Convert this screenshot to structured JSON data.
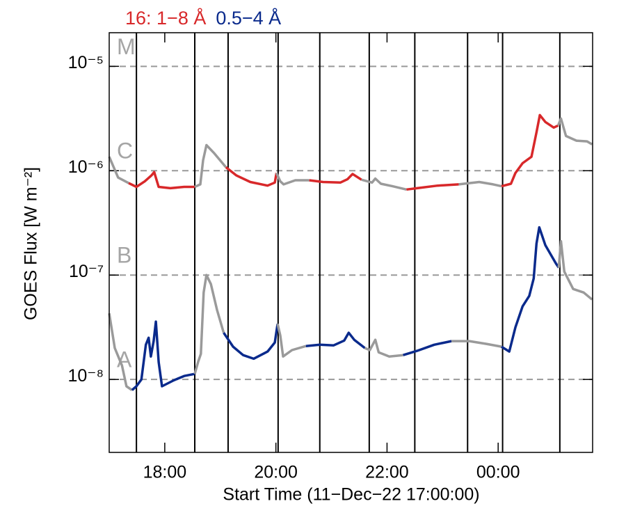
{
  "chart_data": {
    "type": "line",
    "xlabel": "Start Time (11−Dec−22 17:00:00)",
    "ylabel": "GOES Flux [W m⁻²]",
    "log_y": true,
    "grid": true,
    "xlim": [
      0,
      8.7
    ],
    "ylim": [
      2e-09,
      2.1e-05
    ],
    "xticks": [
      {
        "value": 1,
        "label": "18:00"
      },
      {
        "value": 3,
        "label": "20:00"
      },
      {
        "value": 5,
        "label": "22:00"
      },
      {
        "value": 7,
        "label": "00:00"
      }
    ],
    "yticks": [
      {
        "value": 1e-08,
        "label": "10⁻⁸"
      },
      {
        "value": 1e-07,
        "label": "10⁻⁷"
      },
      {
        "value": 1e-06,
        "label": "10⁻⁶"
      },
      {
        "value": 1e-05,
        "label": "10⁻⁵"
      }
    ],
    "flare_classes": [
      {
        "label": "A",
        "value": 1e-08
      },
      {
        "label": "B",
        "value": 1e-07
      },
      {
        "label": "C",
        "value": 1e-06
      },
      {
        "label": "M",
        "value": 1e-05
      }
    ],
    "intervals": [
      [
        0.49,
        1.54
      ],
      [
        2.14,
        3.04
      ],
      [
        3.79,
        4.68
      ],
      [
        5.5,
        6.45
      ],
      [
        7.08,
        8.11
      ]
    ],
    "outside_color": "#9a9a9a",
    "series": [
      {
        "name": "16: 1−8 Å",
        "color": "#d8282a",
        "x": [
          0,
          0.16,
          0.35,
          0.49,
          0.64,
          0.76,
          0.81,
          0.89,
          1.1,
          1.35,
          1.54,
          1.64,
          1.69,
          1.75,
          1.89,
          2.1,
          2.29,
          2.54,
          2.85,
          2.98,
          3.01,
          3.08,
          3.14,
          3.35,
          3.6,
          3.85,
          4.16,
          4.29,
          4.38,
          4.54,
          4.73,
          4.79,
          4.89,
          5.1,
          5.35,
          5.54,
          5.91,
          6.29,
          6.66,
          6.91,
          7.06,
          7.23,
          7.31,
          7.44,
          7.6,
          7.69,
          7.75,
          7.85,
          8.0,
          8.08,
          8.13,
          8.22,
          8.41,
          8.6,
          8.69
        ],
        "values": [
          1.36e-06,
          8.6e-07,
          7.6e-07,
          7e-07,
          7.9e-07,
          9e-07,
          9.7e-07,
          7e-07,
          6.8e-07,
          7e-07,
          7e-07,
          7.4e-07,
          1.26e-06,
          1.76e-06,
          1.47e-06,
          1.08e-06,
          9e-07,
          7.8e-07,
          7.2e-07,
          7.7e-07,
          9.5e-07,
          7.9e-07,
          7.4e-07,
          8.1e-07,
          8.1e-07,
          7.8e-07,
          7.7e-07,
          8.3e-07,
          9.3e-07,
          8.2e-07,
          7.7e-07,
          8.4e-07,
          7.5e-07,
          7.1e-07,
          6.6e-07,
          6.8e-07,
          7.2e-07,
          7.4e-07,
          7.8e-07,
          7.4e-07,
          7.1e-07,
          7.5e-07,
          9.5e-07,
          1.18e-06,
          1.36e-06,
          2.33e-06,
          3.41e-06,
          2.93e-06,
          2.59e-06,
          2.71e-06,
          3.16e-06,
          2.15e-06,
          1.94e-06,
          1.91e-06,
          1.79e-06
        ]
      },
      {
        "name": "0.5−4 Å",
        "color": "#0a2a8c",
        "x": [
          0,
          0.1,
          0.23,
          0.31,
          0.41,
          0.49,
          0.58,
          0.66,
          0.71,
          0.75,
          0.8,
          0.84,
          0.89,
          0.95,
          1.16,
          1.35,
          1.54,
          1.6,
          1.65,
          1.7,
          1.75,
          1.83,
          1.94,
          2.06,
          2.23,
          2.41,
          2.6,
          2.85,
          2.98,
          3.03,
          3.08,
          3.13,
          3.29,
          3.54,
          3.79,
          4.04,
          4.23,
          4.31,
          4.41,
          4.6,
          4.69,
          4.79,
          4.85,
          5.04,
          5.29,
          5.54,
          5.85,
          6.16,
          6.48,
          6.79,
          7.06,
          7.2,
          7.31,
          7.44,
          7.56,
          7.64,
          7.69,
          7.74,
          7.85,
          8.04,
          8.09,
          8.13,
          8.19,
          8.35,
          8.54,
          8.69
        ],
        "values": [
          4.3e-08,
          2e-08,
          1.36e-08,
          8.6e-09,
          7.9e-09,
          8.6e-09,
          1e-08,
          2.15e-08,
          2.51e-08,
          1.66e-08,
          2.33e-08,
          3.58e-08,
          1.47e-08,
          8.6e-09,
          9.8e-09,
          1.08e-08,
          1.13e-08,
          1.47e-08,
          1.76e-08,
          6.81e-08,
          1e-07,
          8.2e-08,
          4.64e-08,
          2.8e-08,
          2.06e-08,
          1.71e-08,
          1.58e-08,
          1.85e-08,
          2.26e-08,
          3.41e-08,
          2.63e-08,
          1.66e-08,
          1.91e-08,
          2.09e-08,
          2.15e-08,
          2.12e-08,
          2.36e-08,
          2.8e-08,
          2.4e-08,
          2e-08,
          1.91e-08,
          2.4e-08,
          1.82e-08,
          1.66e-08,
          1.71e-08,
          1.88e-08,
          2.15e-08,
          2.33e-08,
          2.33e-08,
          2.19e-08,
          2.06e-08,
          1.85e-08,
          3.16e-08,
          5.01e-08,
          6.31e-08,
          9.28e-08,
          2e-07,
          2.87e-07,
          1.93e-07,
          1.29e-07,
          1.18e-07,
          2.11e-07,
          1.08e-07,
          7.36e-08,
          6.81e-08,
          5.84e-08
        ]
      }
    ]
  }
}
